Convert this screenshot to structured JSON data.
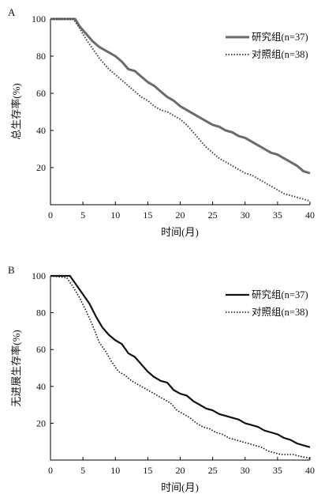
{
  "chart_data": [
    {
      "type": "line",
      "panel_label": "A",
      "xlabel": "时间(月)",
      "ylabel": "总生存率(%)",
      "xlim": [
        0,
        40
      ],
      "ylim": [
        0,
        100
      ],
      "xticks": [
        0,
        5,
        10,
        15,
        20,
        25,
        30,
        35,
        40
      ],
      "yticks": [
        20,
        40,
        60,
        80,
        100
      ],
      "legend_position": "top-right",
      "series": [
        {
          "name": "研究组(n=37)",
          "style": "solid",
          "color": "#6b6b6b",
          "x": [
            0,
            3.8,
            4.5,
            5.5,
            6.5,
            7.5,
            9,
            10,
            11,
            12,
            13,
            14,
            15,
            16,
            17,
            18,
            19,
            20,
            21,
            22,
            23,
            24,
            25,
            26,
            27,
            28,
            29,
            30,
            31,
            32,
            33,
            34,
            35,
            36,
            37,
            38,
            39,
            40
          ],
          "y": [
            100,
            100,
            96,
            92,
            88,
            85,
            82,
            80,
            77,
            73,
            72,
            69,
            66,
            64,
            61,
            58,
            56,
            53,
            51,
            49,
            47,
            45,
            43,
            42,
            40,
            39,
            37,
            36,
            34,
            32,
            30,
            28,
            27,
            25,
            23,
            21,
            18,
            17
          ]
        },
        {
          "name": "对照组(n=38)",
          "style": "dotted",
          "color": "#444444",
          "x": [
            0,
            3.5,
            4.5,
            5.5,
            6.5,
            7.5,
            9,
            10,
            11,
            12,
            13,
            14,
            15,
            16,
            17,
            18,
            19,
            20,
            21,
            22,
            23,
            24,
            25,
            26,
            27,
            28,
            29,
            30,
            31,
            32,
            33,
            34,
            35,
            36,
            37,
            38,
            39,
            40
          ],
          "y": [
            100,
            100,
            95,
            89,
            84,
            79,
            73,
            70,
            67,
            64,
            61,
            58,
            56,
            53,
            51,
            50,
            48,
            46,
            43,
            39,
            35,
            31,
            28,
            25,
            23,
            21,
            19,
            17,
            16,
            14,
            12,
            10,
            8,
            6,
            5,
            4,
            3,
            2
          ]
        }
      ]
    },
    {
      "type": "line",
      "panel_label": "B",
      "xlabel": "时间(月)",
      "ylabel": "无进展生存率(%)",
      "xlim": [
        0,
        40
      ],
      "ylim": [
        0,
        100
      ],
      "xticks": [
        0,
        5,
        10,
        15,
        20,
        25,
        30,
        35,
        40
      ],
      "yticks": [
        20,
        40,
        60,
        80,
        100
      ],
      "legend_position": "top-right",
      "series": [
        {
          "name": "研究组(n=37)",
          "style": "solid",
          "color": "#111111",
          "x": [
            0,
            3,
            4,
            5,
            6,
            7,
            8,
            9,
            10,
            11,
            12,
            13,
            14,
            15,
            16,
            17,
            18,
            19,
            20,
            21,
            22,
            23,
            24,
            25,
            26,
            27,
            28,
            29,
            30,
            31,
            32,
            33,
            34,
            35,
            36,
            37,
            38,
            39,
            40
          ],
          "y": [
            100,
            100,
            95,
            90,
            85,
            78,
            72,
            68,
            65,
            63,
            58,
            56,
            52,
            48,
            45,
            43,
            42,
            38,
            36,
            35,
            32,
            30,
            28,
            27,
            25,
            24,
            23,
            22,
            20,
            19,
            18,
            16,
            15,
            14,
            12,
            11,
            9,
            8,
            7
          ]
        },
        {
          "name": "对照组(n=38)",
          "style": "dotted",
          "color": "#111111",
          "x": [
            0,
            2.5,
            3.5,
            4.5,
            5.5,
            6.5,
            7.5,
            8.5,
            9.5,
            10.5,
            11.5,
            12.5,
            13.5,
            14.5,
            15.5,
            16.5,
            17.5,
            18.5,
            19.5,
            20.5,
            21.5,
            22.5,
            23.5,
            24.5,
            25.5,
            26.5,
            27.5,
            28.5,
            29.5,
            30.5,
            31.5,
            32.5,
            33.5,
            34.5,
            35.5,
            36.5,
            37.5,
            38.5,
            40
          ],
          "y": [
            100,
            99,
            94,
            88,
            81,
            73,
            64,
            59,
            53,
            48,
            46,
            43,
            41,
            39,
            37,
            35,
            33,
            31,
            27,
            25,
            23,
            20,
            18,
            17,
            15,
            14,
            12,
            11,
            10,
            9,
            8,
            7,
            5,
            4,
            3,
            3,
            3,
            2,
            1
          ]
        }
      ]
    }
  ]
}
